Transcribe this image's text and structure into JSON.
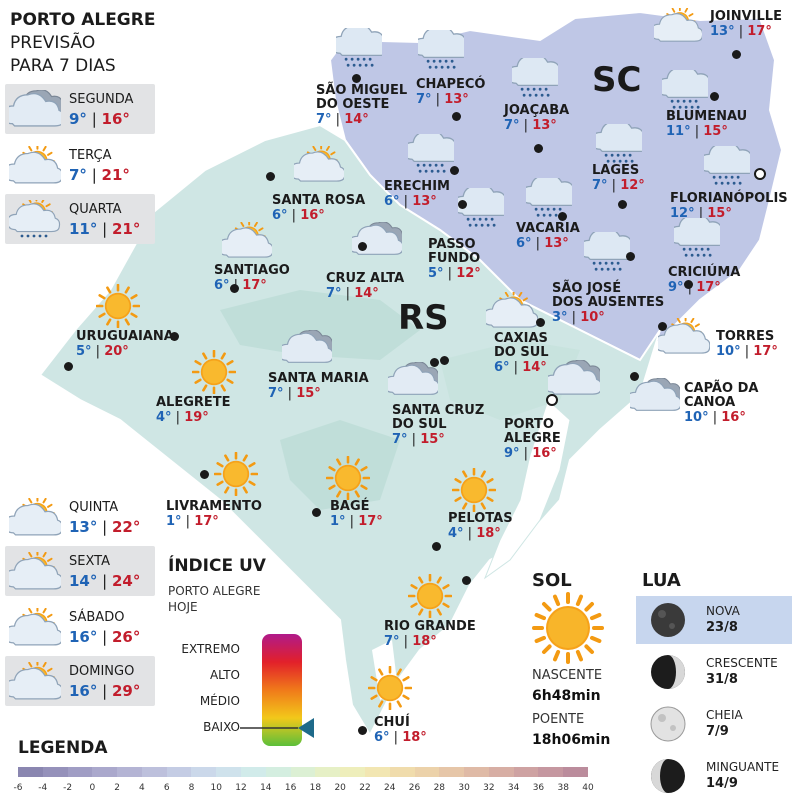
{
  "header": {
    "title": "PORTO ALEGRE",
    "line2": "PREVISÃO",
    "line3": "PARA 7 DIAS"
  },
  "state_labels": {
    "sc": "SC",
    "rs": "RS"
  },
  "days": [
    {
      "name": "SEGUNDA",
      "min": "9°",
      "max": "16°",
      "icon": "cloudy-icon"
    },
    {
      "name": "TERÇA",
      "min": "7°",
      "max": "21°",
      "icon": "partly-cloudy-icon"
    },
    {
      "name": "QUARTA",
      "min": "11°",
      "max": "21°",
      "icon": "sun-rain-icon"
    },
    {
      "name": "QUINTA",
      "min": "13°",
      "max": "22°",
      "icon": "partly-cloudy-icon"
    },
    {
      "name": "SEXTA",
      "min": "14°",
      "max": "24°",
      "icon": "partly-cloudy-icon"
    },
    {
      "name": "SÁBADO",
      "min": "16°",
      "max": "26°",
      "icon": "partly-cloudy-icon"
    },
    {
      "name": "DOMINGO",
      "min": "16°",
      "max": "29°",
      "icon": "partly-cloudy-icon"
    }
  ],
  "cities": [
    {
      "name": "JOINVILLE",
      "min": "13°",
      "max": "17°",
      "icon": "cloud-sun-icon"
    },
    {
      "name": "SÃO MIGUEL\nDO OESTE",
      "min": "7°",
      "max": "14°",
      "icon": "rain-icon"
    },
    {
      "name": "CHAPECÓ",
      "min": "7°",
      "max": "13°",
      "icon": "rain-icon"
    },
    {
      "name": "JOAÇABA",
      "min": "7°",
      "max": "13°",
      "icon": "rain-icon"
    },
    {
      "name": "BLUMENAU",
      "min": "11°",
      "max": "15°",
      "icon": "rain-icon"
    },
    {
      "name": "LAGES",
      "min": "7°",
      "max": "12°",
      "icon": "rain-icon"
    },
    {
      "name": "FLORIANÓPOLIS",
      "min": "12°",
      "max": "15°",
      "icon": "rain-icon"
    },
    {
      "name": "ERECHIM",
      "min": "6°",
      "max": "13°",
      "icon": "rain-icon"
    },
    {
      "name": "SANTA ROSA",
      "min": "6°",
      "max": "16°",
      "icon": "partly-cloudy-icon"
    },
    {
      "name": "VACARIA",
      "min": "6°",
      "max": "13°",
      "icon": "rain-icon"
    },
    {
      "name": "PASSO\nFUNDO",
      "min": "5°",
      "max": "12°",
      "icon": "rain-icon"
    },
    {
      "name": "SANTIAGO",
      "min": "6°",
      "max": "17°",
      "icon": "partly-cloudy-icon"
    },
    {
      "name": "CRUZ ALTA",
      "min": "7°",
      "max": "14°",
      "icon": "cloudy-icon"
    },
    {
      "name": "SÃO JOSÉ\nDOS AUSENTES",
      "min": "3°",
      "max": "10°",
      "icon": "rain-icon"
    },
    {
      "name": "CRICIÚMA",
      "min": "9°",
      "max": "17°",
      "icon": "rain-icon"
    },
    {
      "name": "URUGUAIANA",
      "min": "5°",
      "max": "20°",
      "icon": "sun-icon"
    },
    {
      "name": "TORRES",
      "min": "10°",
      "max": "17°",
      "icon": "partly-cloudy-icon"
    },
    {
      "name": "CAXIAS\nDO SUL",
      "min": "6°",
      "max": "14°",
      "icon": "partly-cloudy-icon"
    },
    {
      "name": "SANTA MARIA",
      "min": "7°",
      "max": "15°",
      "icon": "cloudy-icon"
    },
    {
      "name": "ALEGRETE",
      "min": "4°",
      "max": "19°",
      "icon": "sun-icon"
    },
    {
      "name": "CAPÃO DA\nCANOA",
      "min": "10°",
      "max": "16°",
      "icon": "cloudy-icon"
    },
    {
      "name": "SANTA CRUZ\nDO SUL",
      "min": "7°",
      "max": "15°",
      "icon": "cloudy-icon"
    },
    {
      "name": "PORTO\nALEGRE",
      "min": "9°",
      "max": "16°",
      "icon": "cloudy-icon"
    },
    {
      "name": "LIVRAMENTO",
      "min": "1°",
      "max": "17°",
      "icon": "sun-icon"
    },
    {
      "name": "BAGÉ",
      "min": "1°",
      "max": "17°",
      "icon": "sun-icon"
    },
    {
      "name": "PELOTAS",
      "min": "4°",
      "max": "18°",
      "icon": "sun-icon"
    },
    {
      "name": "RIO GRANDE",
      "min": "7°",
      "max": "18°",
      "icon": "sun-icon"
    },
    {
      "name": "CHUÍ",
      "min": "6°",
      "max": "18°",
      "icon": "sun-icon"
    }
  ],
  "uv": {
    "title": "ÍNDICE UV",
    "sub1": "PORTO ALEGRE",
    "sub2": "HOJE",
    "levels": [
      "EXTREMO",
      "ALTO",
      "MÉDIO",
      "BAIXO"
    ],
    "current_level": "BAIXO"
  },
  "sol": {
    "title": "SOL",
    "rise_label": "NASCENTE",
    "rise": "6h48min",
    "set_label": "POENTE",
    "set": "18h06min"
  },
  "lua": {
    "title": "LUA",
    "phases": [
      {
        "name": "NOVA",
        "date": "23/8",
        "icon": "new-moon-icon"
      },
      {
        "name": "CRESCENTE",
        "date": "31/8",
        "icon": "first-quarter-moon-icon"
      },
      {
        "name": "CHEIA",
        "date": "7/9",
        "icon": "full-moon-icon"
      },
      {
        "name": "MINGUANTE",
        "date": "14/9",
        "icon": "last-quarter-moon-icon"
      }
    ]
  },
  "legend": {
    "title": "LEGENDA",
    "ticks": [
      "-6",
      "-4",
      "-2",
      "0",
      "2",
      "4",
      "6",
      "8",
      "10",
      "12",
      "14",
      "16",
      "18",
      "20",
      "22",
      "24",
      "26",
      "28",
      "30",
      "32",
      "34",
      "36",
      "38",
      "40"
    ],
    "colors": [
      "#8a86b0",
      "#9591ba",
      "#a09dc4",
      "#aaa8cc",
      "#b4b4d4",
      "#bdc0dc",
      "#c4cce4",
      "#cbd8ea",
      "#cfe2ec",
      "#d1ebea",
      "#d4eee0",
      "#dcf0d4",
      "#e6f0c6",
      "#eeeebb",
      "#f2e6b2",
      "#f0dcac",
      "#ecd2aa",
      "#e6c6a8",
      "#dfbaa6",
      "#d7aea4",
      "#cea2a2",
      "#c597a0",
      "#bb8c9c"
    ]
  }
}
